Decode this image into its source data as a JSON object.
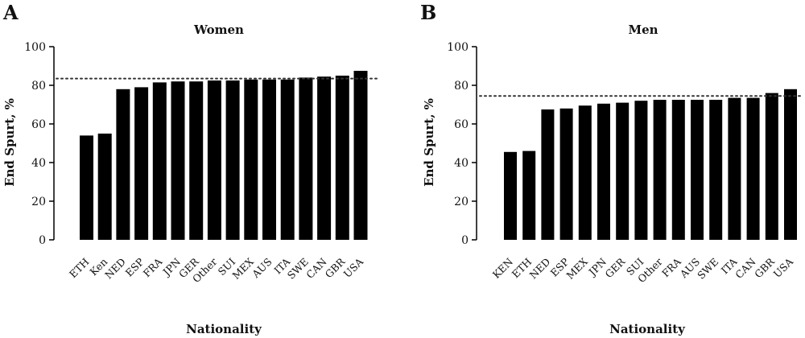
{
  "chart_data": [
    {
      "type": "bar",
      "panel": "A",
      "title": "Women",
      "xlabel": "Nationality",
      "ylabel": "End Spurt, %",
      "ylim": [
        0,
        100
      ],
      "yticks": [
        0,
        20,
        40,
        60,
        80,
        100
      ],
      "reference_line": 83.5,
      "categories": [
        "ETH",
        "Ken",
        "NED",
        "ESP",
        "FRA",
        "JPN",
        "GER",
        "Other",
        "SUI",
        "MEX",
        "AUS",
        "ITA",
        "SWE",
        "CAN",
        "GBR",
        "USA"
      ],
      "values": [
        54,
        55,
        78,
        79,
        81.5,
        82,
        82,
        82.5,
        82.5,
        83,
        83,
        83,
        84,
        84.5,
        85,
        87.5
      ],
      "colors": {
        "bars": "#000000",
        "reference_line": "#333333"
      }
    },
    {
      "type": "bar",
      "panel": "B",
      "title": "Men",
      "xlabel": "Nationality",
      "ylabel": "End Spurt, %",
      "ylim": [
        0,
        100
      ],
      "yticks": [
        0,
        20,
        40,
        60,
        80,
        100
      ],
      "reference_line": 74.5,
      "categories": [
        "KEN",
        "ETH",
        "NED",
        "ESP",
        "MEX",
        "JPN",
        "GER",
        "SUI",
        "Other",
        "FRA",
        "AUS",
        "SWE",
        "ITA",
        "CAN",
        "GBR",
        "USA"
      ],
      "values": [
        45.5,
        46,
        67.5,
        68,
        69.5,
        70.5,
        71,
        72,
        72.5,
        72.5,
        72.5,
        72.5,
        73.5,
        73.5,
        76,
        78
      ],
      "colors": {
        "bars": "#000000",
        "reference_line": "#333333"
      }
    }
  ]
}
